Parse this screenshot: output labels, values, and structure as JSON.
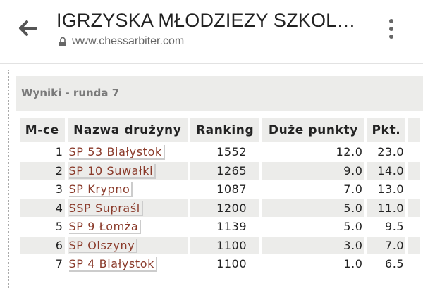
{
  "header": {
    "title": "IGRZYSKA MŁODZIEZY SZKOL…",
    "url": "www.chessarbiter.com"
  },
  "panel": {
    "title": "Wyniki - runda 7"
  },
  "table": {
    "columns": [
      "M-ce",
      "Nazwa drużyny",
      "Ranking",
      "Duże punkty",
      "Pkt."
    ],
    "rows": [
      {
        "place": "1",
        "team": "SP 53 Białystok",
        "ranking": "1552",
        "big_points": "12.0",
        "points": "23.0"
      },
      {
        "place": "2",
        "team": "SP 10 Suwałki",
        "ranking": "1265",
        "big_points": "9.0",
        "points": "14.0"
      },
      {
        "place": "3",
        "team": "SP Krypno",
        "ranking": "1087",
        "big_points": "7.0",
        "points": "13.0"
      },
      {
        "place": "4",
        "team": "SSP Supraśl",
        "ranking": "1200",
        "big_points": "5.0",
        "points": "11.0"
      },
      {
        "place": "5",
        "team": "SP 9 Łomża",
        "ranking": "1139",
        "big_points": "5.0",
        "points": "9.5"
      },
      {
        "place": "6",
        "team": "SP Olszyny",
        "ranking": "1100",
        "big_points": "3.0",
        "points": "7.0"
      },
      {
        "place": "7",
        "team": "SP 4 Białystok",
        "ranking": "1100",
        "big_points": "1.0",
        "points": "6.5"
      }
    ]
  }
}
